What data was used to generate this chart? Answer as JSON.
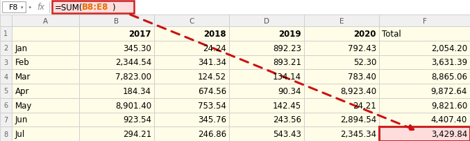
{
  "formula_cell": "F8",
  "formula_text": "=SUM(B8:E8)",
  "col_letters": [
    "A",
    "B",
    "C",
    "D",
    "E",
    "F"
  ],
  "col_labels_row1": [
    "",
    "2017",
    "2018",
    "2019",
    "2020",
    "Total"
  ],
  "row_labels": [
    "Jan",
    "Feb",
    "Mar",
    "Apr",
    "May",
    "Jun",
    "Jul"
  ],
  "data": [
    [
      345.3,
      24.24,
      892.23,
      792.43,
      2054.2
    ],
    [
      2344.54,
      341.34,
      893.21,
      52.3,
      3631.39
    ],
    [
      7823.0,
      124.52,
      134.14,
      783.4,
      8865.06
    ],
    [
      184.34,
      674.56,
      90.34,
      8923.4,
      9872.64
    ],
    [
      8901.4,
      753.54,
      142.45,
      24.21,
      9821.6
    ],
    [
      923.54,
      345.76,
      243.56,
      2894.54,
      4407.4
    ],
    [
      294.21,
      246.86,
      543.43,
      2345.34,
      3429.84
    ]
  ],
  "formula_box_fill": "#ffdddd",
  "formula_box_border": "#cc2222",
  "formula_ref_color": "#e07000",
  "arrow_color": "#cc1111",
  "cell_bg_light": "#fffde7",
  "cell_bg_white": "#ffffff",
  "row_num_bg": "#f0f0f0",
  "col_letter_bg": "#f0f0f0",
  "header_row_bg": "#fffde7",
  "total_col_bg": "#fffde7",
  "f8_highlight_bg": "#ffdddd",
  "f8_highlight_border": "#cc2222",
  "grid_color": "#cccccc",
  "formula_bar_bg": "#ffffff",
  "text_color": "#000000",
  "row_num_color": "#666666",
  "col_letter_color": "#555555"
}
